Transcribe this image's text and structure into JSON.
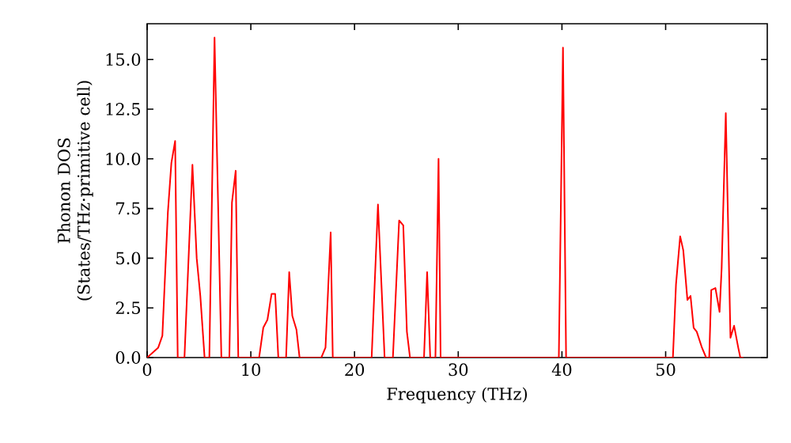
{
  "chart_data": {
    "type": "line",
    "xlabel": "Frequency (THz)",
    "ylabel": "Phonon DOS (States/THz·primitive cell)",
    "xlim": [
      0,
      59.8
    ],
    "ylim": [
      0,
      16.8
    ],
    "xticks": [
      0,
      10,
      20,
      30,
      40,
      50
    ],
    "yticks": [
      {
        "value": 0,
        "label": "0.0"
      },
      2.5,
      {
        "value": 5,
        "label": "5.0"
      },
      7.5,
      {
        "value": 10,
        "label": "10.0"
      },
      12.5,
      {
        "value": 15,
        "label": "15.0"
      }
    ],
    "grid": false,
    "marker": "none",
    "line_style": "solid",
    "series": [
      {
        "color": "#ff0000",
        "x": [
          0,
          1.07,
          1.47,
          2.0,
          2.34,
          2.7,
          2.95,
          3.6,
          4.37,
          4.78,
          5.13,
          5.54,
          6.0,
          6.5,
          7.16,
          7.93,
          8.18,
          8.54,
          8.79,
          10.8,
          11.2,
          11.6,
          12.0,
          12.35,
          12.65,
          13.4,
          13.7,
          14.0,
          14.4,
          14.7,
          16.8,
          17.2,
          17.7,
          17.9,
          21.65,
          22.26,
          22.9,
          23.7,
          24.3,
          24.7,
          25.05,
          25.35,
          26.7,
          27.0,
          27.3,
          27.8,
          28.1,
          28.3,
          39.7,
          40.1,
          40.4,
          50.7,
          51.0,
          51.4,
          51.7,
          52.1,
          52.4,
          52.7,
          53.0,
          53.5,
          53.9,
          54.2,
          54.4,
          54.8,
          55.2,
          55.4,
          55.8,
          56.25,
          56.6,
          57.0,
          57.2,
          57.5
        ],
        "values": [
          0,
          0.5,
          1.1,
          7.3,
          9.8,
          10.9,
          0,
          0,
          9.7,
          5.0,
          3.1,
          0,
          0,
          16.1,
          0,
          0,
          7.8,
          9.4,
          0,
          0,
          1.5,
          1.9,
          3.2,
          3.2,
          0,
          0,
          4.3,
          2.1,
          1.4,
          0,
          0,
          0.5,
          6.3,
          0,
          0,
          7.7,
          0,
          0,
          6.9,
          6.65,
          1.3,
          0,
          0,
          4.3,
          0,
          0,
          10.0,
          0,
          0,
          15.6,
          0,
          0,
          3.7,
          6.1,
          5.4,
          2.9,
          3.1,
          1.5,
          1.3,
          0.5,
          0,
          0,
          3.4,
          3.5,
          2.3,
          4.5,
          12.3,
          1.0,
          1.6,
          0.5,
          0,
          0
        ]
      }
    ]
  }
}
